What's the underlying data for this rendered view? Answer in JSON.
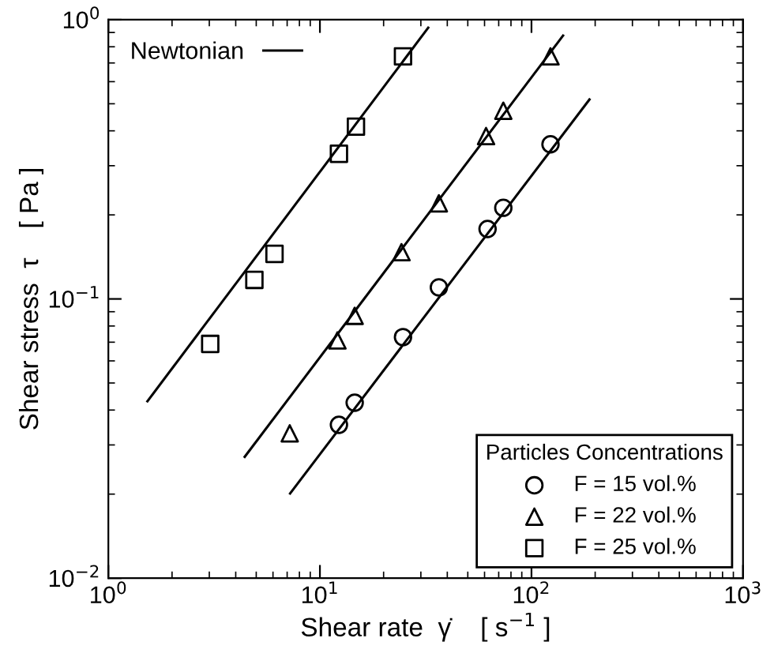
{
  "chart_data": {
    "type": "scatter",
    "log": "xy",
    "xlabel": "Shear rate  γ̇    [ s$^{−1}$ ]",
    "ylabel": "Shear stress  τ    [ Pa ]",
    "legend_title": "Particles Concentrations",
    "legend": "bottom right",
    "grid": false,
    "xlim": [
      1,
      1000
    ],
    "xticks": [
      {
        "value": 1,
        "label": "10$^{0}$"
      },
      {
        "value": 10,
        "label": "10$^{1}$"
      },
      {
        "value": 100,
        "label": "10$^{2}$"
      },
      {
        "value": 1000,
        "label": "10$^{3}$"
      }
    ],
    "ylim": [
      0.01,
      1
    ],
    "yticks": [
      {
        "value": 0.01,
        "label": "10$^{−2}$"
      },
      {
        "value": 0.1,
        "label": "10$^{−1}$"
      },
      {
        "value": 1,
        "label": "10$^{0}$"
      }
    ],
    "series": [
      {
        "name": "F = 15 vol.%",
        "color": "#000000",
        "marker": "circle",
        "x": [
          12.3,
          14.6,
          24.7,
          36.5,
          62,
          73.6,
          123
        ],
        "values": [
          0.0354,
          0.0425,
          0.073,
          0.11,
          0.178,
          0.212,
          0.358
        ]
      },
      {
        "name": "F = 22 vol.%",
        "color": "#000000",
        "marker": "triangle",
        "x": [
          7.2,
          12.1,
          14.6,
          24.3,
          36.5,
          61,
          73.6,
          123
        ],
        "values": [
          0.033,
          0.071,
          0.087,
          0.147,
          0.22,
          0.383,
          0.472,
          0.739
        ]
      },
      {
        "name": "F = 25 vol.%",
        "color": "#000000",
        "marker": "square",
        "x": [
          3.03,
          4.9,
          6.1,
          12.3,
          14.8,
          24.7
        ],
        "values": [
          0.069,
          0.117,
          0.145,
          0.331,
          0.414,
          0.739
        ]
      },
      {
        "name": "Newtonian",
        "type": "line",
        "color": "#000000",
        "line_style": "solid",
        "x": [
          1.53,
          32.5
        ],
        "values": [
          0.043,
          0.936
        ]
      },
      {
        "type": "line",
        "color": "#000000",
        "line_style": "solid",
        "x": [
          4.41,
          141
        ],
        "values": [
          0.0272,
          0.877
        ]
      },
      {
        "type": "line",
        "color": "#000000",
        "line_style": "solid",
        "x": [
          7.23,
          188
        ],
        "values": [
          0.0201,
          0.518
        ]
      }
    ]
  }
}
